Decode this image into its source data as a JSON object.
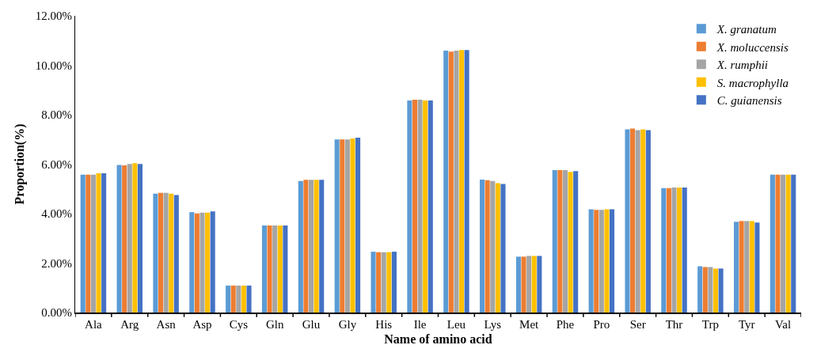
{
  "chart_data": {
    "type": "bar",
    "xlabel": "Name of amino acid",
    "ylabel": "Proportion(%)",
    "categories": [
      "Ala",
      "Arg",
      "Asn",
      "Asp",
      "Cys",
      "Gln",
      "Glu",
      "Gly",
      "His",
      "Ile",
      "Leu",
      "Lys",
      "Met",
      "Phe",
      "Pro",
      "Ser",
      "Thr",
      "Trp",
      "Tyr",
      "Val"
    ],
    "series": [
      {
        "name": "X. granatum",
        "color": "#5b9bd5",
        "values": [
          5.58,
          5.97,
          4.81,
          4.06,
          1.09,
          3.52,
          5.32,
          7.0,
          2.46,
          8.58,
          10.59,
          5.38,
          2.26,
          5.76,
          4.18,
          7.41,
          5.03,
          1.87,
          3.67,
          5.58
        ]
      },
      {
        "name": "X. moluccensis",
        "color": "#ed7d31",
        "values": [
          5.58,
          5.95,
          4.84,
          4.01,
          1.09,
          3.52,
          5.37,
          7.0,
          2.44,
          8.61,
          10.55,
          5.35,
          2.26,
          5.76,
          4.15,
          7.44,
          5.03,
          1.84,
          3.7,
          5.58
        ]
      },
      {
        "name": "X. rumphii",
        "color": "#a5a5a5",
        "values": [
          5.58,
          6.01,
          4.84,
          4.04,
          1.09,
          3.52,
          5.37,
          7.0,
          2.44,
          8.61,
          10.59,
          5.32,
          2.29,
          5.76,
          4.15,
          7.38,
          5.06,
          1.84,
          3.7,
          5.58
        ]
      },
      {
        "name": "S. macrophylla",
        "color": "#ffc000",
        "values": [
          5.63,
          6.04,
          4.81,
          4.04,
          1.09,
          3.52,
          5.37,
          7.04,
          2.44,
          8.58,
          10.62,
          5.23,
          2.29,
          5.69,
          4.18,
          7.41,
          5.06,
          1.78,
          3.7,
          5.58
        ]
      },
      {
        "name": "C. guianensis",
        "color": "#4472c4",
        "values": [
          5.63,
          6.01,
          4.75,
          4.09,
          1.09,
          3.52,
          5.37,
          7.07,
          2.46,
          8.58,
          10.62,
          5.2,
          2.29,
          5.72,
          4.18,
          7.38,
          5.06,
          1.78,
          3.64,
          5.58
        ]
      }
    ],
    "ylim": [
      0,
      12
    ],
    "yticks": [
      {
        "value": 0,
        "label": "0.00%"
      },
      {
        "value": 2,
        "label": "2.00%"
      },
      {
        "value": 4,
        "label": "4.00%"
      },
      {
        "value": 6,
        "label": "6.00%"
      },
      {
        "value": 8,
        "label": "8.00%"
      },
      {
        "value": 10,
        "label": "10.00%"
      },
      {
        "value": 12,
        "label": "12.00%"
      }
    ],
    "legend": "top right"
  }
}
